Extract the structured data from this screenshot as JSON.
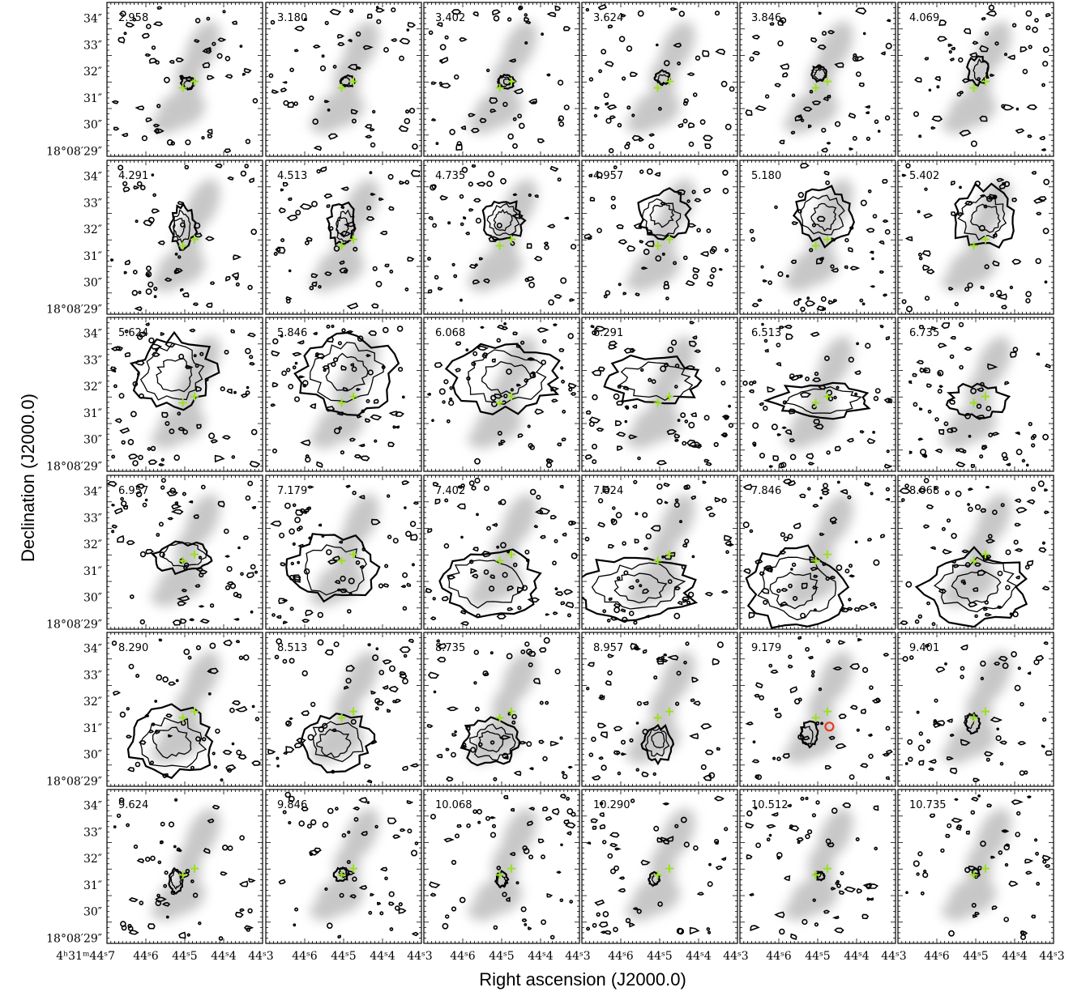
{
  "chart_data": {
    "type": "channel-map",
    "grid": {
      "rows": 6,
      "cols": 6
    },
    "xlabel": "Right ascension (J2000.0)",
    "ylabel": "Declination (J2000.0)",
    "velocities": [
      "2.958",
      "3.180",
      "3.402",
      "3.624",
      "3.846",
      "4.069",
      "4.291",
      "4.513",
      "4.735",
      "4.957",
      "5.180",
      "5.402",
      "5.624",
      "5.846",
      "6.068",
      "6.291",
      "6.513",
      "6.735",
      "6.957",
      "7.179",
      "7.402",
      "7.624",
      "7.846",
      "8.068",
      "8.290",
      "8.513",
      "8.735",
      "8.957",
      "9.179",
      "9.401",
      "9.624",
      "9.846",
      "10.068",
      "10.290",
      "10.512",
      "10.735"
    ],
    "dec_ticks": [
      "34″",
      "33″",
      "32″",
      "31″",
      "30″",
      "18°08′29″"
    ],
    "dec_values": [
      34,
      33,
      32,
      31,
      30,
      29
    ],
    "ra_ticks_first": [
      "4ʰ31ᵐ44ˢ7",
      "44ˢ6",
      "44ˢ5",
      "44ˢ4",
      "44ˢ3"
    ],
    "ra_ticks": [
      "44ˢ6",
      "44ˢ5",
      "44ˢ4",
      "44ˢ3"
    ],
    "ra_values": [
      44.6,
      44.5,
      44.4,
      44.3
    ],
    "ra_first_value": 44.7,
    "sources": [
      {
        "name": "",
        "ra": 44.505,
        "dec": 31.38,
        "marker": "plus"
      },
      {
        "name": "",
        "ra": 44.475,
        "dec": 31.62,
        "marker": "plus"
      }
    ],
    "circle_marker": {
      "panel": 28,
      "ra": 44.47,
      "dec": 31.05
    },
    "colors": {
      "background_emission": "#9a9a9a",
      "contour": "#000000",
      "source_marker": "#9ae020",
      "circle": "#e53a1e"
    }
  }
}
